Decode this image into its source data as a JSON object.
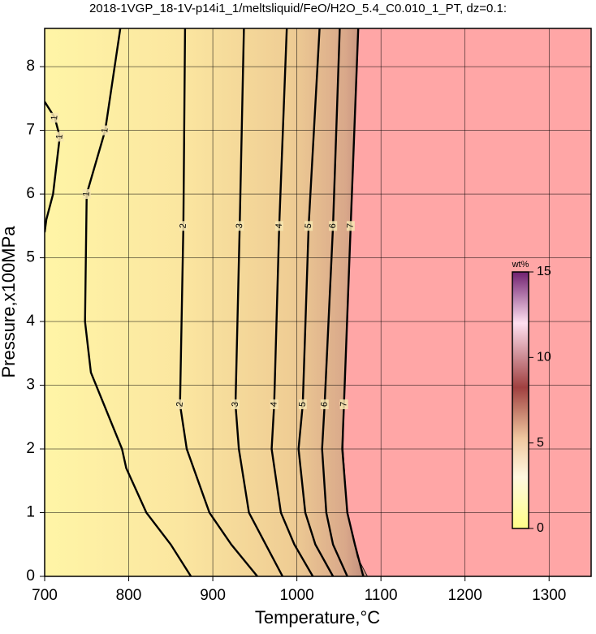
{
  "chart_data": {
    "type": "contour",
    "title": "2018-1VGP_18-1V-p14i1_1/meltsliquid/FeO/H2O_5.4_C0.010_1_PT, dz=0.1:",
    "x_label": "Temperature,°C",
    "y_label": "Pressure,x100MPa",
    "xlim": [
      700,
      1350
    ],
    "ylim": [
      0,
      8.6
    ],
    "xticks": [
      700,
      800,
      900,
      1000,
      1100,
      1200,
      1300
    ],
    "yticks": [
      0,
      1,
      2,
      3,
      4,
      5,
      6,
      7,
      8
    ],
    "grid": true,
    "contours": [
      {
        "level": 1,
        "x": [
          700,
          712,
          718,
          710,
          702,
          700
        ],
        "y": [
          7.45,
          7.2,
          6.9,
          6.0,
          5.6,
          5.4
        ]
      },
      {
        "level": 1,
        "x": [
          790,
          772,
          750,
          748,
          755,
          792,
          797,
          821,
          850,
          874
        ],
        "y": [
          8.6,
          7.0,
          6.0,
          4.0,
          3.2,
          2.0,
          1.7,
          1.0,
          0.5,
          0
        ]
      },
      {
        "level": 2,
        "x": [
          867,
          865,
          861,
          869,
          896,
          922,
          953
        ],
        "y": [
          8.6,
          5.5,
          2.7,
          2.0,
          1.0,
          0.5,
          0
        ]
      },
      {
        "level": 3,
        "x": [
          937,
          932,
          927,
          931,
          943,
          963,
          983
        ],
        "y": [
          8.6,
          5.5,
          2.7,
          2.0,
          1.0,
          0.5,
          0
        ]
      },
      {
        "level": 4,
        "x": [
          988,
          979,
          973,
          970,
          981,
          997,
          1019
        ],
        "y": [
          8.6,
          5.5,
          2.7,
          2.0,
          1.0,
          0.5,
          0
        ]
      },
      {
        "level": 5,
        "x": [
          1027,
          1014,
          1007,
          1002,
          1010,
          1022,
          1043
        ],
        "y": [
          8.6,
          5.5,
          2.7,
          2.0,
          1.0,
          0.5,
          0
        ]
      },
      {
        "level": 6,
        "x": [
          1051,
          1043,
          1033,
          1030,
          1035,
          1043,
          1060
        ],
        "y": [
          8.6,
          5.5,
          2.7,
          2.0,
          1.0,
          0.5,
          0
        ]
      },
      {
        "level": 7,
        "x": [
          1073,
          1064,
          1056,
          1054,
          1060,
          1069,
          1079
        ],
        "y": [
          8.6,
          5.5,
          2.7,
          2.0,
          1.0,
          0.5,
          0
        ]
      }
    ],
    "boundary": {
      "x": [
        1073,
        1064,
        1056,
        1055,
        1060,
        1072,
        1084
      ],
      "y": [
        8.6,
        5.5,
        2.7,
        2.0,
        1.0,
        0.3,
        0
      ]
    },
    "colorbar": {
      "label": "wt%",
      "lim": [
        0,
        15
      ],
      "ticks": [
        0,
        5,
        10,
        15
      ]
    }
  }
}
